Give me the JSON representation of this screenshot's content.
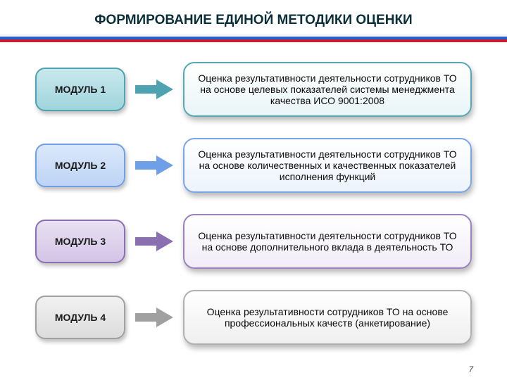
{
  "title": {
    "text": "ФОРМИРОВАНИЕ ЕДИНОЙ МЕТОДИКИ ОЦЕНКИ",
    "fontsize": 19,
    "color": "#0b2f3a"
  },
  "tricolor": {
    "white": "#f2f6fb",
    "blue": "#2a5fd0",
    "red": "#c72030"
  },
  "row_gap": 30,
  "module_fontsize": 14,
  "desc_fontsize": 14,
  "page_number": "7",
  "modules": [
    {
      "label": "МОДУЛЬ 1",
      "module_bg": "linear-gradient(#c9e8ed,#9fd5dc)",
      "module_border": "#4fa3b0",
      "arrow_color": "#4fa3b0",
      "desc": "Оценка результативности деятельности сотрудников ТО на основе целевых показателей системы менеджмента качества ИСО 9001:2008",
      "desc_bg": "linear-gradient(#ffffff,#e9f5f7)",
      "desc_border": "#58a8b4"
    },
    {
      "label": "МОДУЛЬ 2",
      "module_bg": "linear-gradient(#dbe8fb,#bdd4f4)",
      "module_border": "#6f9fe6",
      "arrow_color": "#6f9fe6",
      "desc": "Оценка результативности деятельности сотрудников ТО на основе количественных и качественных показателей исполнения функций",
      "desc_bg": "linear-gradient(#ffffff,#edf3fc)",
      "desc_border": "#7aa6e8"
    },
    {
      "label": "МОДУЛЬ 3",
      "module_bg": "linear-gradient(#e9e1f2,#d3c4e6)",
      "module_border": "#8a70b0",
      "arrow_color": "#8a70b0",
      "desc": "Оценка результативности деятельности сотрудников ТО  на основе дополнительного вклада в деятельность ТО",
      "desc_bg": "linear-gradient(#ffffff,#f1ecf7)",
      "desc_border": "#9a82bf"
    },
    {
      "label": "МОДУЛЬ 4",
      "module_bg": "linear-gradient(#f1f1f1,#dcdcdc)",
      "module_border": "#a0a0a0",
      "arrow_color": "#a0a0a0",
      "desc": "Оценка результативности сотрудников ТО на основе профессиональных качеств (анкетирование)",
      "desc_bg": "linear-gradient(#ffffff,#efefef)",
      "desc_border": "#b0b0b0"
    }
  ]
}
